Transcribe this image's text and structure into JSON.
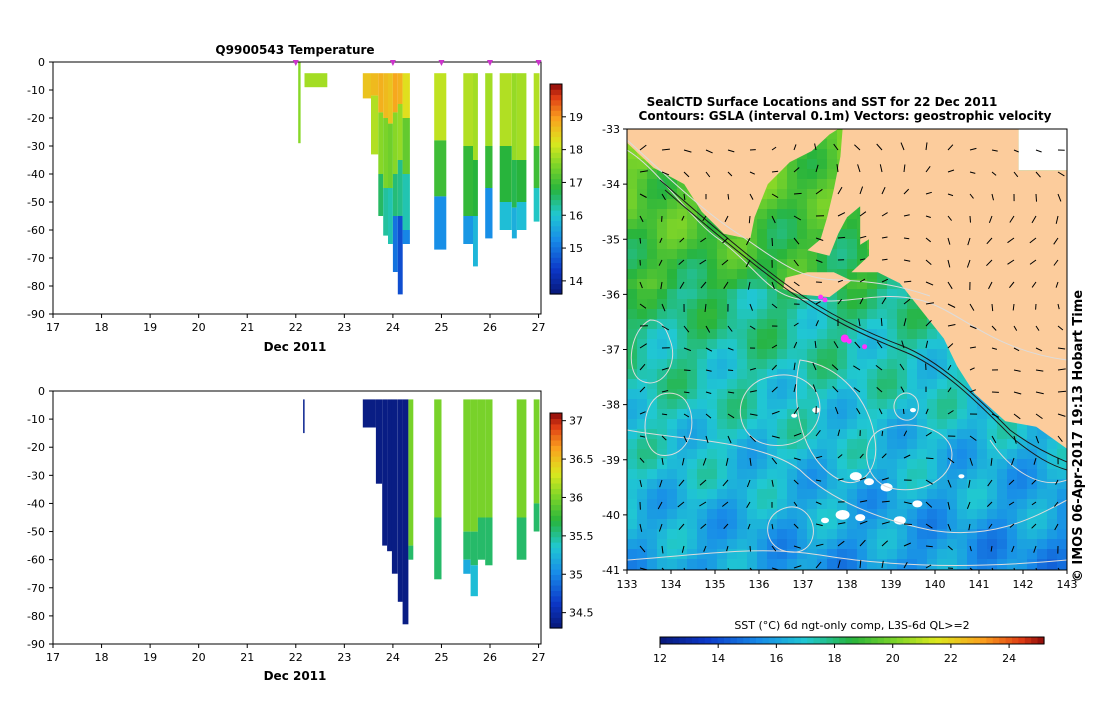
{
  "chart_data": [
    {
      "type": "heatmap",
      "title": "Q9900543  Temperature",
      "xlabel": "Dec 2011",
      "ylabel": "",
      "x_ticks": [
        17,
        18,
        19,
        20,
        21,
        22,
        23,
        24,
        25,
        26,
        27
      ],
      "y_ticks": [
        0,
        -10,
        -20,
        -30,
        -40,
        -50,
        -60,
        -70,
        -80,
        -90
      ],
      "xlim": [
        17,
        27.05
      ],
      "ylim": [
        -90,
        0
      ],
      "colorbar": {
        "min": 13.6,
        "max": 20.0,
        "ticks": [
          14,
          15,
          16,
          17,
          18,
          19
        ]
      },
      "profile_markers": [
        22,
        24,
        25,
        26,
        27
      ],
      "profiles": [
        {
          "x0": 22.05,
          "x1": 22.1,
          "segments": [
            {
              "top": 0,
              "bottom": -29,
              "value": 17.6
            }
          ]
        },
        {
          "x0": 22.18,
          "x1": 22.65,
          "segments": [
            {
              "top": -4,
              "bottom": -9,
              "value": 17.8
            }
          ]
        },
        {
          "x0": 23.38,
          "x1": 23.55,
          "segments": [
            {
              "top": -4,
              "bottom": -13,
              "value": 18.6
            }
          ]
        },
        {
          "x0": 23.55,
          "x1": 23.7,
          "segments": [
            {
              "top": -4,
              "bottom": -12,
              "value": 18.7
            },
            {
              "top": -12,
              "bottom": -33,
              "value": 17.9
            }
          ]
        },
        {
          "x0": 23.7,
          "x1": 23.8,
          "segments": [
            {
              "top": -4,
              "bottom": -18,
              "value": 18.8
            },
            {
              "top": -18,
              "bottom": -40,
              "value": 17.6
            },
            {
              "top": -40,
              "bottom": -55,
              "value": 16.6
            }
          ]
        },
        {
          "x0": 23.8,
          "x1": 23.9,
          "segments": [
            {
              "top": -4,
              "bottom": -20,
              "value": 18.7
            },
            {
              "top": -20,
              "bottom": -45,
              "value": 17.5
            },
            {
              "top": -45,
              "bottom": -62,
              "value": 16.3
            }
          ]
        },
        {
          "x0": 23.9,
          "x1": 24.0,
          "segments": [
            {
              "top": -4,
              "bottom": -22,
              "value": 18.6
            },
            {
              "top": -22,
              "bottom": -45,
              "value": 17.4
            },
            {
              "top": -45,
              "bottom": -65,
              "value": 16.2
            }
          ]
        },
        {
          "x0": 24.0,
          "x1": 24.1,
          "segments": [
            {
              "top": -4,
              "bottom": -18,
              "value": 18.9
            },
            {
              "top": -18,
              "bottom": -40,
              "value": 17.6
            },
            {
              "top": -40,
              "bottom": -55,
              "value": 16.5
            },
            {
              "top": -55,
              "bottom": -75,
              "value": 15.0
            }
          ]
        },
        {
          "x0": 24.1,
          "x1": 24.2,
          "segments": [
            {
              "top": -4,
              "bottom": -15,
              "value": 18.8
            },
            {
              "top": -15,
              "bottom": -35,
              "value": 17.7
            },
            {
              "top": -35,
              "bottom": -55,
              "value": 16.4
            },
            {
              "top": -55,
              "bottom": -83,
              "value": 14.6
            }
          ]
        },
        {
          "x0": 24.2,
          "x1": 24.35,
          "segments": [
            {
              "top": -4,
              "bottom": -20,
              "value": 18.3
            },
            {
              "top": -20,
              "bottom": -40,
              "value": 17.3
            },
            {
              "top": -40,
              "bottom": -60,
              "value": 16.2
            },
            {
              "top": -60,
              "bottom": -65,
              "value": 15.2
            }
          ]
        },
        {
          "x0": 24.85,
          "x1": 25.1,
          "segments": [
            {
              "top": -4,
              "bottom": -28,
              "value": 18.0
            },
            {
              "top": -28,
              "bottom": -48,
              "value": 17.0
            },
            {
              "top": -48,
              "bottom": -67,
              "value": 15.3
            }
          ]
        },
        {
          "x0": 25.45,
          "x1": 25.65,
          "segments": [
            {
              "top": -4,
              "bottom": -30,
              "value": 17.9
            },
            {
              "top": -30,
              "bottom": -55,
              "value": 16.9
            },
            {
              "top": -55,
              "bottom": -65,
              "value": 15.4
            }
          ]
        },
        {
          "x0": 25.65,
          "x1": 25.75,
          "segments": [
            {
              "top": -4,
              "bottom": -35,
              "value": 17.8
            },
            {
              "top": -35,
              "bottom": -55,
              "value": 16.8
            },
            {
              "top": -55,
              "bottom": -73,
              "value": 15.8
            }
          ]
        },
        {
          "x0": 25.9,
          "x1": 26.05,
          "segments": [
            {
              "top": -4,
              "bottom": -30,
              "value": 17.8
            },
            {
              "top": -30,
              "bottom": -45,
              "value": 16.9
            },
            {
              "top": -45,
              "bottom": -63,
              "value": 15.3
            }
          ]
        },
        {
          "x0": 26.2,
          "x1": 26.45,
          "segments": [
            {
              "top": -4,
              "bottom": -30,
              "value": 17.9
            },
            {
              "top": -30,
              "bottom": -50,
              "value": 16.8
            },
            {
              "top": -50,
              "bottom": -60,
              "value": 15.9
            }
          ]
        },
        {
          "x0": 26.45,
          "x1": 26.55,
          "segments": [
            {
              "top": -4,
              "bottom": -35,
              "value": 17.7
            },
            {
              "top": -35,
              "bottom": -52,
              "value": 16.7
            },
            {
              "top": -52,
              "bottom": -63,
              "value": 15.7
            }
          ]
        },
        {
          "x0": 26.55,
          "x1": 26.75,
          "segments": [
            {
              "top": -4,
              "bottom": -35,
              "value": 17.8
            },
            {
              "top": -35,
              "bottom": -50,
              "value": 16.8
            },
            {
              "top": -50,
              "bottom": -60,
              "value": 15.9
            }
          ]
        },
        {
          "x0": 26.9,
          "x1": 27.02,
          "segments": [
            {
              "top": -4,
              "bottom": -30,
              "value": 17.9
            },
            {
              "top": -30,
              "bottom": -45,
              "value": 17.0
            },
            {
              "top": -45,
              "bottom": -57,
              "value": 16.1
            }
          ]
        }
      ]
    },
    {
      "type": "heatmap",
      "title": "",
      "xlabel": "Dec 2011",
      "ylabel": "",
      "x_ticks": [
        17,
        18,
        19,
        20,
        21,
        22,
        23,
        24,
        25,
        26,
        27
      ],
      "y_ticks": [
        0,
        -10,
        -20,
        -30,
        -40,
        -50,
        -60,
        -70,
        -80,
        -90
      ],
      "xlim": [
        17,
        27.05
      ],
      "ylim": [
        -90,
        0
      ],
      "colorbar": {
        "min": 34.3,
        "max": 37.1,
        "ticks": [
          34.5,
          35,
          35.5,
          36,
          36.5,
          37
        ]
      },
      "profiles": [
        {
          "x0": 22.15,
          "x1": 22.18,
          "segments": [
            {
              "top": -3,
              "bottom": -15,
              "value": 34.4
            }
          ]
        },
        {
          "x0": 23.38,
          "x1": 23.65,
          "segments": [
            {
              "top": -3,
              "bottom": -13,
              "value": 34.35
            }
          ]
        },
        {
          "x0": 23.65,
          "x1": 23.78,
          "segments": [
            {
              "top": -3,
              "bottom": -33,
              "value": 34.35
            }
          ]
        },
        {
          "x0": 23.78,
          "x1": 23.88,
          "segments": [
            {
              "top": -3,
              "bottom": -55,
              "value": 34.35
            }
          ]
        },
        {
          "x0": 23.88,
          "x1": 23.98,
          "segments": [
            {
              "top": -3,
              "bottom": -57,
              "value": 34.35
            }
          ]
        },
        {
          "x0": 23.98,
          "x1": 24.1,
          "segments": [
            {
              "top": -3,
              "bottom": -65,
              "value": 34.35
            }
          ]
        },
        {
          "x0": 24.1,
          "x1": 24.2,
          "segments": [
            {
              "top": -3,
              "bottom": -75,
              "value": 34.35
            }
          ]
        },
        {
          "x0": 24.2,
          "x1": 24.32,
          "segments": [
            {
              "top": -3,
              "bottom": -83,
              "value": 34.35
            }
          ]
        },
        {
          "x0": 24.32,
          "x1": 24.42,
          "segments": [
            {
              "top": -3,
              "bottom": -55,
              "value": 36.0
            },
            {
              "top": -55,
              "bottom": -60,
              "value": 35.6
            }
          ]
        },
        {
          "x0": 24.85,
          "x1": 25.0,
          "segments": [
            {
              "top": -3,
              "bottom": -45,
              "value": 36.0
            },
            {
              "top": -45,
              "bottom": -67,
              "value": 35.6
            }
          ]
        },
        {
          "x0": 25.45,
          "x1": 25.6,
          "segments": [
            {
              "top": -3,
              "bottom": -50,
              "value": 36.0
            },
            {
              "top": -50,
              "bottom": -60,
              "value": 35.6
            },
            {
              "top": -60,
              "bottom": -65,
              "value": 35.2
            }
          ]
        },
        {
          "x0": 25.6,
          "x1": 25.75,
          "segments": [
            {
              "top": -3,
              "bottom": -50,
              "value": 36.0
            },
            {
              "top": -50,
              "bottom": -62,
              "value": 35.6
            },
            {
              "top": -62,
              "bottom": -73,
              "value": 35.3
            }
          ]
        },
        {
          "x0": 25.75,
          "x1": 25.9,
          "segments": [
            {
              "top": -3,
              "bottom": -45,
              "value": 36.0
            },
            {
              "top": -45,
              "bottom": -60,
              "value": 35.6
            }
          ]
        },
        {
          "x0": 25.9,
          "x1": 26.05,
          "segments": [
            {
              "top": -3,
              "bottom": -45,
              "value": 36.0
            },
            {
              "top": -45,
              "bottom": -62,
              "value": 35.6
            }
          ]
        },
        {
          "x0": 26.55,
          "x1": 26.75,
          "segments": [
            {
              "top": -3,
              "bottom": -45,
              "value": 36.0
            },
            {
              "top": -45,
              "bottom": -60,
              "value": 35.6
            }
          ]
        },
        {
          "x0": 26.9,
          "x1": 27.02,
          "segments": [
            {
              "top": -3,
              "bottom": -40,
              "value": 36.0
            },
            {
              "top": -40,
              "bottom": -50,
              "value": 35.6
            }
          ]
        }
      ]
    },
    {
      "type": "heatmap",
      "title": "SealCTD Surface Locations and SST for 22 Dec 2011",
      "subtitle": "Contours: GSLA (interval 0.1m) Vectors: geostrophic velocity",
      "xlabel": "",
      "ylabel": "",
      "x_ticks": [
        133,
        134,
        135,
        136,
        137,
        138,
        139,
        140,
        141,
        142,
        143
      ],
      "y_ticks": [
        -33,
        -34,
        -35,
        -36,
        -37,
        -38,
        -39,
        -40,
        -41
      ],
      "xlim": [
        133,
        143
      ],
      "ylim": [
        -41,
        -33
      ],
      "colorbar": {
        "label": "SST (°C) 6d ngt-only comp, L3S-6d QL>=2",
        "min": 12,
        "max": 25.2,
        "ticks": [
          12,
          14,
          16,
          18,
          20,
          22,
          24
        ]
      },
      "seal_locations": [
        [
          137.4,
          -36.05
        ],
        [
          137.5,
          -36.1
        ],
        [
          137.95,
          -36.8
        ],
        [
          138.05,
          -36.85
        ],
        [
          138.4,
          -36.95
        ]
      ],
      "stamp": "© IMOS 06-Apr-2017 19:13 Hobart Time"
    }
  ],
  "colors": {
    "land": "#fccc9c",
    "seal_marker": "#ff33ff",
    "contour": "#dcdcdc",
    "vector": "#000000",
    "missing": "#ffffff"
  }
}
